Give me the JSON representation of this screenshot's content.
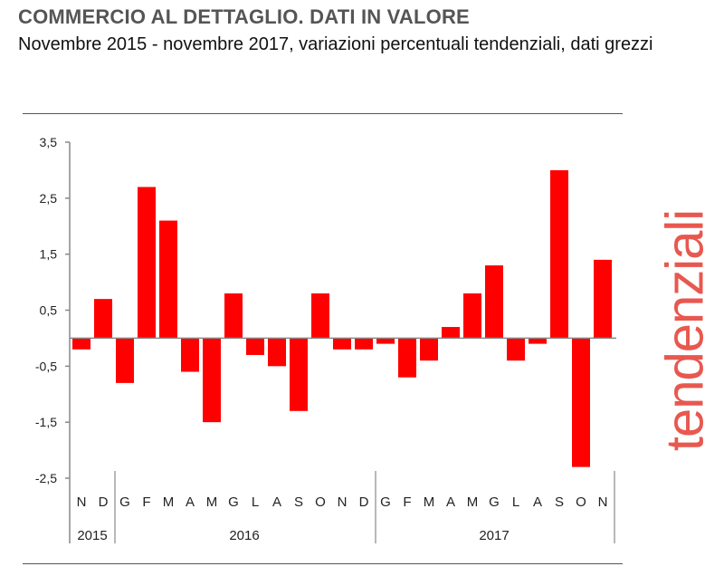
{
  "title": "COMMERCIO AL DETTAGLIO. DATI IN VALORE",
  "subtitle": "Novembre 2015 - novembre 2017, variazioni percentuali tendenziali, dati grezzi",
  "watermark": "tendenziali",
  "colors": {
    "bar": "#ff0000",
    "title": "#555555",
    "watermark": "#e8584f"
  },
  "chart_data": {
    "type": "bar",
    "title": "",
    "xlabel": "",
    "ylabel": "",
    "ylim": [
      -2.5,
      3.5
    ],
    "yticks": [
      3.5,
      2.5,
      1.5,
      0.5,
      -0.5,
      -1.5,
      -2.5
    ],
    "ytick_labels": [
      "3,5",
      "2,5",
      "1,5",
      "0,5",
      "-0,5",
      "-1,5",
      "-2,5"
    ],
    "grid": false,
    "categories": [
      "N",
      "D",
      "G",
      "F",
      "M",
      "A",
      "M",
      "G",
      "L",
      "A",
      "S",
      "O",
      "N",
      "D",
      "G",
      "F",
      "M",
      "A",
      "M",
      "G",
      "L",
      "A",
      "S",
      "O",
      "N"
    ],
    "years": [
      {
        "label": "2015",
        "count": 2
      },
      {
        "label": "2016",
        "count": 12
      },
      {
        "label": "2017",
        "count": 11
      }
    ],
    "values": [
      -0.2,
      0.7,
      -0.8,
      2.7,
      2.1,
      -0.6,
      -1.5,
      0.8,
      -0.3,
      -0.5,
      -1.3,
      0.8,
      -0.2,
      -0.2,
      -0.1,
      -0.7,
      -0.4,
      0.2,
      0.8,
      1.3,
      -0.4,
      -0.1,
      3.0,
      -2.3,
      1.4
    ]
  }
}
